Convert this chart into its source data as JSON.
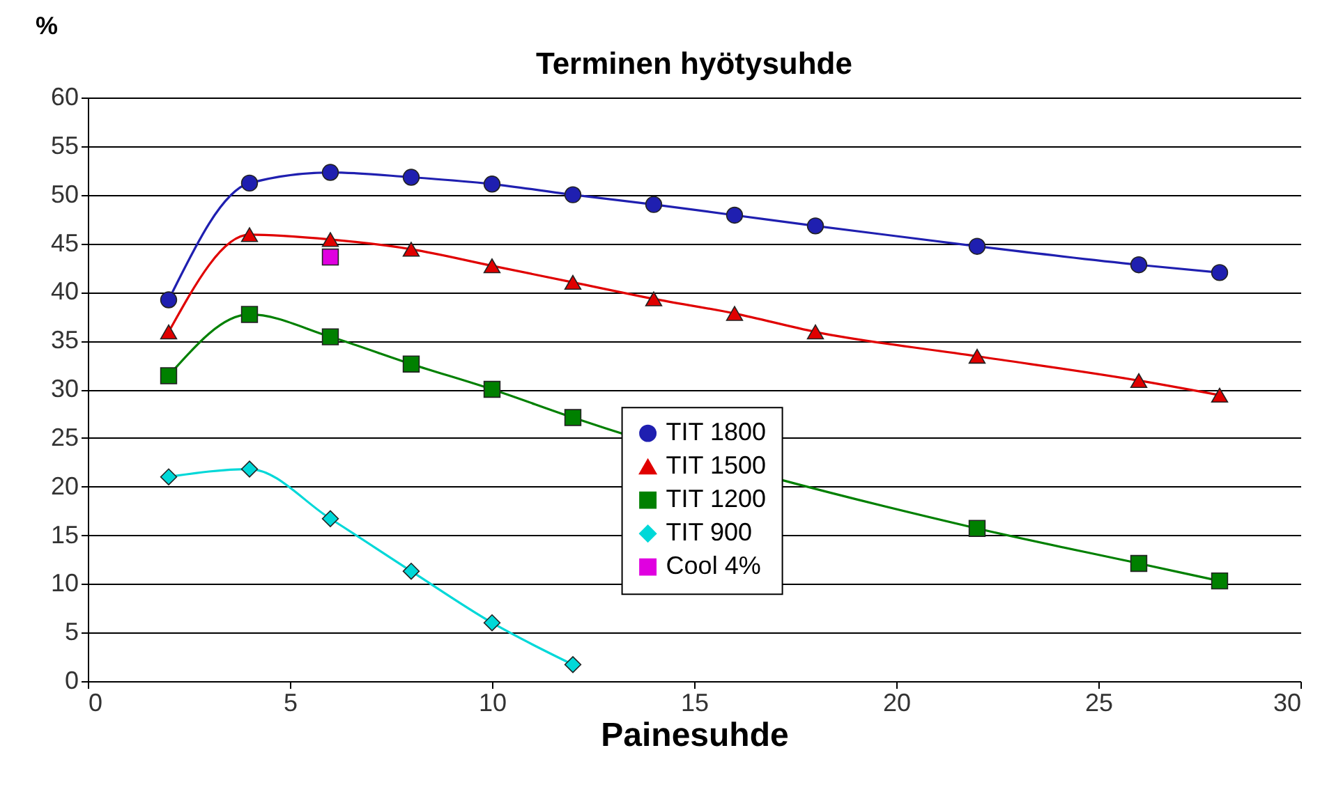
{
  "chart_data": {
    "type": "line",
    "title": "Terminen hyötysuhde",
    "xlabel": "Painesuhde",
    "ylabel": "%",
    "xlim": [
      0,
      30
    ],
    "xticks": [
      0,
      5,
      10,
      15,
      20,
      25,
      30
    ],
    "ylim": [
      0,
      60
    ],
    "yticks": [
      0,
      5,
      10,
      15,
      20,
      25,
      30,
      35,
      40,
      45,
      50,
      55,
      60
    ],
    "grid": "y",
    "legend": "bottom",
    "series": [
      {
        "name": "TIT 1800",
        "color": "#1f1fb0",
        "marker": "circle",
        "x": [
          2,
          4,
          6,
          8,
          10,
          12,
          14,
          16,
          18,
          22,
          26,
          28
        ],
        "values": [
          39.2,
          51.2,
          52.3,
          51.8,
          51.1,
          50.0,
          49.0,
          47.9,
          46.8,
          44.7,
          42.8,
          42.0
        ]
      },
      {
        "name": "TIT 1500",
        "color": "#e00000",
        "marker": "triangle",
        "x": [
          2,
          4,
          6,
          8,
          10,
          12,
          14,
          16,
          18,
          22,
          26,
          28
        ],
        "values": [
          35.9,
          45.9,
          45.4,
          44.4,
          42.7,
          41.0,
          39.3,
          37.8,
          35.9,
          33.4,
          30.9,
          29.4
        ]
      },
      {
        "name": "TIT 1200",
        "color": "#008000",
        "marker": "square",
        "x": [
          2,
          4,
          6,
          8,
          10,
          12,
          22,
          26,
          28
        ],
        "values": [
          31.4,
          37.7,
          35.4,
          32.6,
          30.0,
          27.1,
          15.7,
          12.1,
          10.3
        ]
      },
      {
        "name": "TIT 900",
        "color": "#00d8d8",
        "marker": "diamond",
        "x": [
          2,
          4,
          6,
          8,
          10,
          12
        ],
        "values": [
          21.0,
          21.8,
          16.7,
          11.3,
          6.0,
          1.7
        ]
      },
      {
        "name": "Cool 4%",
        "type": "scatter",
        "color": "#e000e0",
        "marker": "square",
        "x": [
          6
        ],
        "values": [
          43.6
        ]
      }
    ]
  }
}
